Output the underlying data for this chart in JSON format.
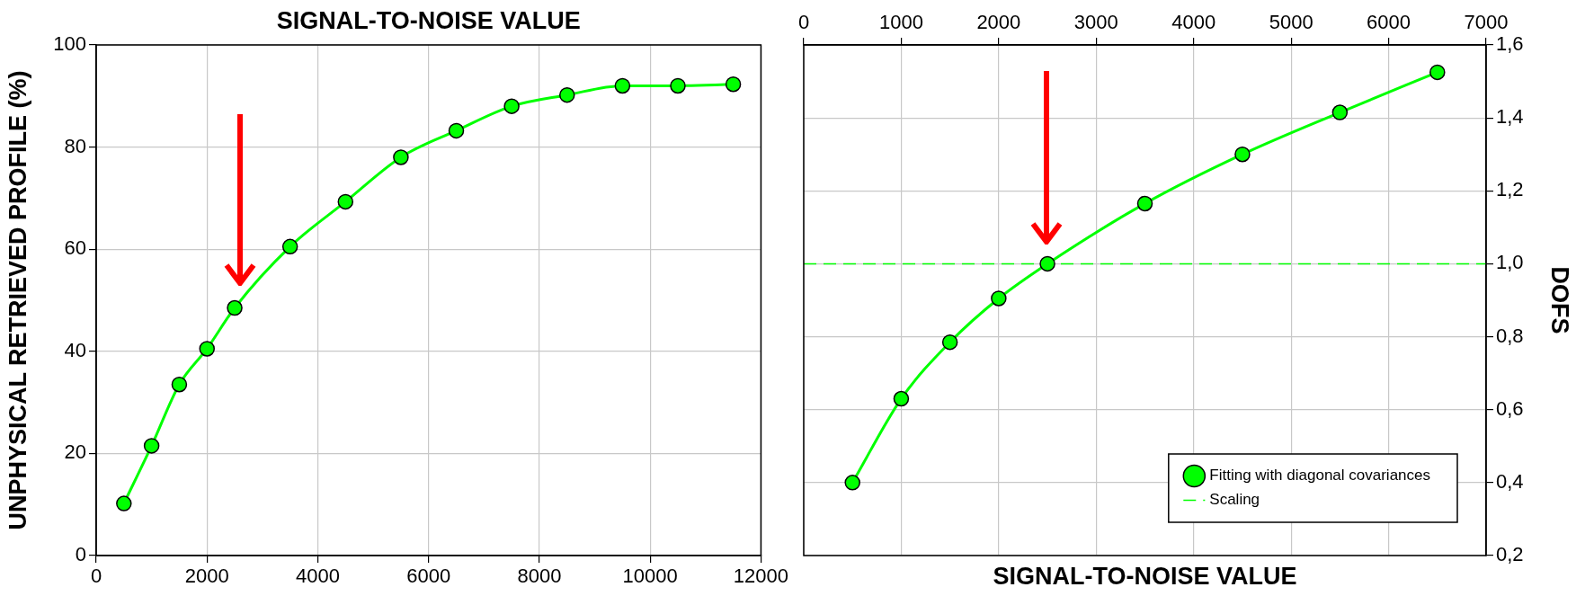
{
  "chart_data": [
    {
      "type": "line",
      "xlabel": "SIGNAL-TO-NOISE VALUE",
      "ylabel": "UNPHYSICAL RETRIEVED PROFILE (%)",
      "x": [
        500,
        1000,
        1500,
        2000,
        2500,
        3500,
        4500,
        5500,
        6500,
        7500,
        8500,
        9500,
        10500,
        11500
      ],
      "series": [
        {
          "color": "#00ff00",
          "values": [
            10.2,
            21.5,
            33.5,
            40.5,
            48.5,
            60.5,
            69.3,
            78,
            83.2,
            88,
            90.2,
            92,
            92,
            92.3
          ]
        }
      ],
      "xlim": [
        0,
        12000
      ],
      "xticks": [
        0,
        2000,
        4000,
        6000,
        8000,
        10000,
        12000
      ],
      "ylim": [
        0,
        100
      ],
      "yticks": [
        0,
        20,
        40,
        60,
        80,
        100
      ],
      "grid": true,
      "marker": "circle",
      "line_style": "solid"
    },
    {
      "type": "line",
      "xlabel": "SIGNAL-TO-NOISE VALUE",
      "ylabel": "DOFS",
      "x": [
        500,
        1000,
        1500,
        2000,
        2500,
        3500,
        4500,
        5500,
        6500
      ],
      "series": [
        {
          "name": "Fitting with diagonal covariances",
          "color": "#00ff00",
          "values": [
            0.4,
            0.63,
            0.785,
            0.905,
            1.0,
            1.165,
            1.3,
            1.415,
            1.525
          ]
        }
      ],
      "xlim": [
        0,
        7000
      ],
      "xticks": [
        0,
        1000,
        2000,
        3000,
        4000,
        5000,
        6000,
        7000
      ],
      "ylim": [
        0.2,
        1.6
      ],
      "yticks": [
        {
          "value": 0.2,
          "label": "0,2"
        },
        {
          "value": 0.4,
          "label": "0,4"
        },
        {
          "value": 0.6,
          "label": "0,6"
        },
        {
          "value": 0.8,
          "label": "0,8"
        },
        {
          "value": 1.0,
          "label": "1,0"
        },
        {
          "value": 1.2,
          "label": "1,2"
        },
        {
          "value": 1.4,
          "label": "1,4"
        },
        {
          "value": 1.6,
          "label": "1,6"
        }
      ],
      "ref_lines": [
        {
          "axis": "y",
          "value": 1.0,
          "label": "Scaling",
          "color": "#00ff00",
          "line_style": "dashed"
        }
      ],
      "grid": true,
      "legend": "bottom right",
      "marker": "circle",
      "line_style": "solid"
    }
  ]
}
